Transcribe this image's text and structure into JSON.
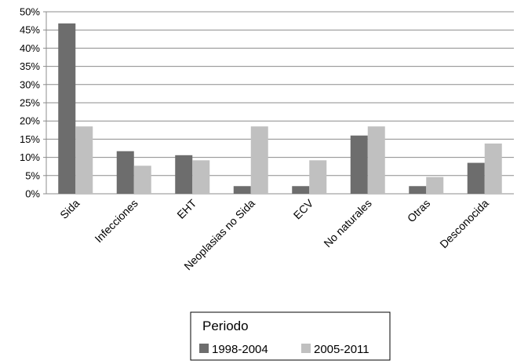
{
  "chart_data": {
    "type": "bar",
    "title": "",
    "xlabel": "",
    "ylabel": "",
    "ylim": [
      0,
      50
    ],
    "yticks": [
      "0%",
      "5%",
      "10%",
      "15%",
      "20%",
      "25%",
      "30%",
      "35%",
      "40%",
      "45%",
      "50%"
    ],
    "categories": [
      "Sida",
      "Infecciones",
      "EHT",
      "Neoplasias no Sida",
      "ECV",
      "No naturales",
      "Otras",
      "Desconocida"
    ],
    "series": [
      {
        "name": "1998-2004",
        "color": "#6d6d6d",
        "values": [
          46.8,
          11.7,
          10.6,
          2.1,
          2.1,
          16.0,
          2.1,
          8.5
        ]
      },
      {
        "name": "2005-2011",
        "color": "#c0c0c0",
        "values": [
          18.5,
          7.7,
          9.2,
          18.5,
          9.2,
          18.5,
          4.6,
          13.8
        ]
      }
    ],
    "grid": true,
    "legend": {
      "title": "Periodo",
      "position": "bottom"
    }
  }
}
